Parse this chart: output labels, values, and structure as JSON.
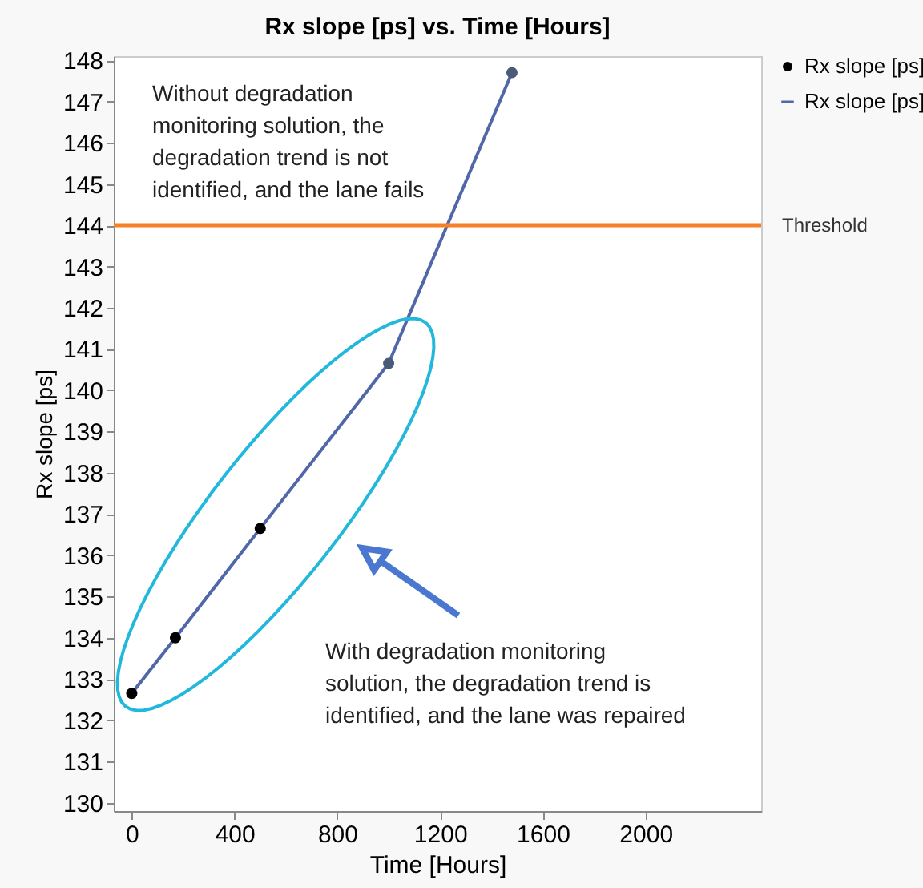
{
  "chart_data": {
    "type": "line",
    "title": "Rx slope [ps] vs. Time [Hours]",
    "xlabel": "Time [Hours]",
    "ylabel": "Rx slope [ps]",
    "x": [
      0,
      170,
      500,
      1000,
      1480
    ],
    "series": [
      {
        "name": "Rx slope [ps]",
        "color": "#5068a8",
        "values": [
          132.65,
          134.0,
          136.65,
          140.65,
          147.7
        ]
      },
      {
        "name": "Rx slope [ps]",
        "type": "scatter",
        "colors": [
          "#000000",
          "#000000",
          "#000000",
          "#4a5a78",
          "#4a5a78"
        ],
        "values": [
          132.65,
          134.0,
          136.65,
          140.65,
          147.7
        ]
      }
    ],
    "xlim": [
      -70,
      2450
    ],
    "ylim": [
      129.8,
      148.1
    ],
    "xticks": [
      0,
      400,
      800,
      1200,
      1600,
      2000
    ],
    "yticks": [
      130,
      131,
      132,
      133,
      134,
      135,
      136,
      137,
      138,
      139,
      140,
      141,
      142,
      143,
      144,
      145,
      146,
      147,
      148
    ],
    "ref_lines": [
      {
        "axis": "y",
        "value": 144,
        "label": "Threshold",
        "color": "#f58025"
      }
    ],
    "annotations": [
      "Without degradation\nmonitoring solution, the\ndegradation trend is not\nidentified, and the lane fails",
      "With degradation monitoring\nsolution, the degradation trend is\nidentified, and the lane was repaired"
    ],
    "grid": false,
    "legend": "top right"
  }
}
